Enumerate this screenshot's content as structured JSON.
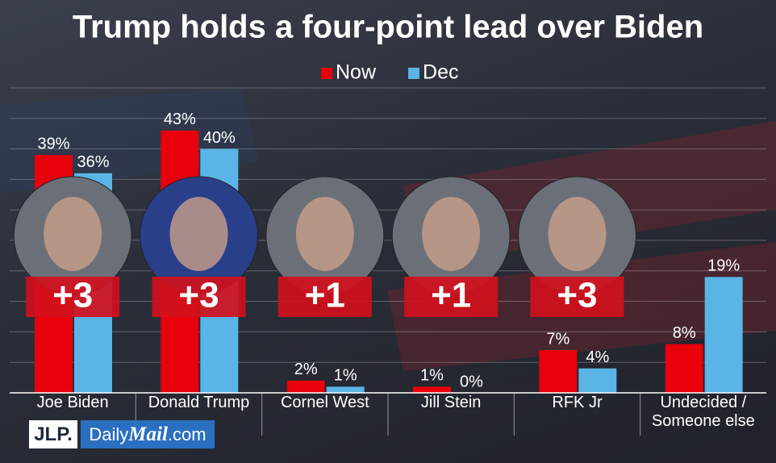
{
  "chart_data": {
    "type": "bar",
    "title": "Trump holds a four-point lead over Biden",
    "categories": [
      "Joe Biden",
      "Donald Trump",
      "Cornel West",
      "Jill Stein",
      "RFK Jr",
      "Undecided / Someone else"
    ],
    "series": [
      {
        "name": "Now",
        "color": "#e8000b",
        "values": [
          39,
          43,
          2,
          1,
          7,
          8
        ],
        "value_labels": [
          "39%",
          "43%",
          "2%",
          "1%",
          "7%",
          "8%"
        ]
      },
      {
        "name": "Dec",
        "color": "#5ab4e6",
        "values": [
          36,
          40,
          1,
          0,
          4,
          19
        ],
        "value_labels": [
          "36%",
          "40%",
          "1%",
          "0%",
          "4%",
          "19%"
        ]
      }
    ],
    "annotations": [
      "+3",
      "+3",
      "+1",
      "+1",
      "+3"
    ],
    "ylim": [
      0,
      50
    ],
    "yticks": [
      0,
      5,
      10,
      15,
      20,
      25,
      30,
      35,
      40,
      45,
      50
    ],
    "grid": true,
    "legend": "top",
    "logos": {
      "jlp": "JLP.",
      "dailymail": [
        "Daily",
        "Mail",
        ".com"
      ]
    }
  }
}
